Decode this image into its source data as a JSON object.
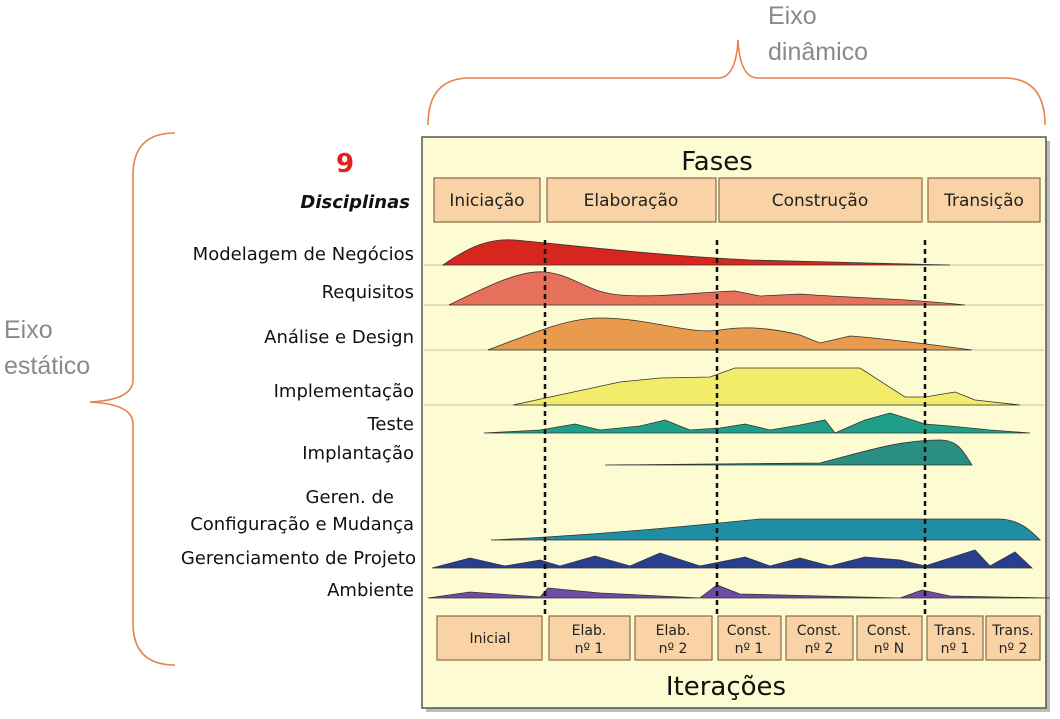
{
  "slide_number": "9",
  "dynamic_axis_label": [
    "Eixo",
    "dinâmico"
  ],
  "static_axis_label": [
    "Eixo",
    "estático"
  ],
  "diagram": {
    "phases_title": "Fases",
    "disciplines_title": "Disciplinas",
    "phases": [
      "Iniciação",
      "Elaboração",
      "Construção",
      "Transição"
    ],
    "disciplines": [
      [
        "Modelagem de Negócios"
      ],
      [
        "Requisitos"
      ],
      [
        "Análise e Design"
      ],
      [
        "Implementação"
      ],
      [
        "Teste"
      ],
      [
        "Implantação"
      ],
      [
        "Geren. de",
        "Configuração e Mudança"
      ],
      [
        "Gerenciamento de Projeto"
      ],
      [
        "Ambiente"
      ]
    ],
    "iterations": [
      [
        "Inicial"
      ],
      [
        "Elab.",
        "nº 1"
      ],
      [
        "Elab.",
        "nº 2"
      ],
      [
        "Const.",
        "nº 1"
      ],
      [
        "Const.",
        "nº 2"
      ],
      [
        "Const.",
        "nº N"
      ],
      [
        "Trans.",
        "nº 1"
      ],
      [
        "Trans.",
        "nº 2"
      ]
    ],
    "iterations_title": "Iterações"
  }
}
